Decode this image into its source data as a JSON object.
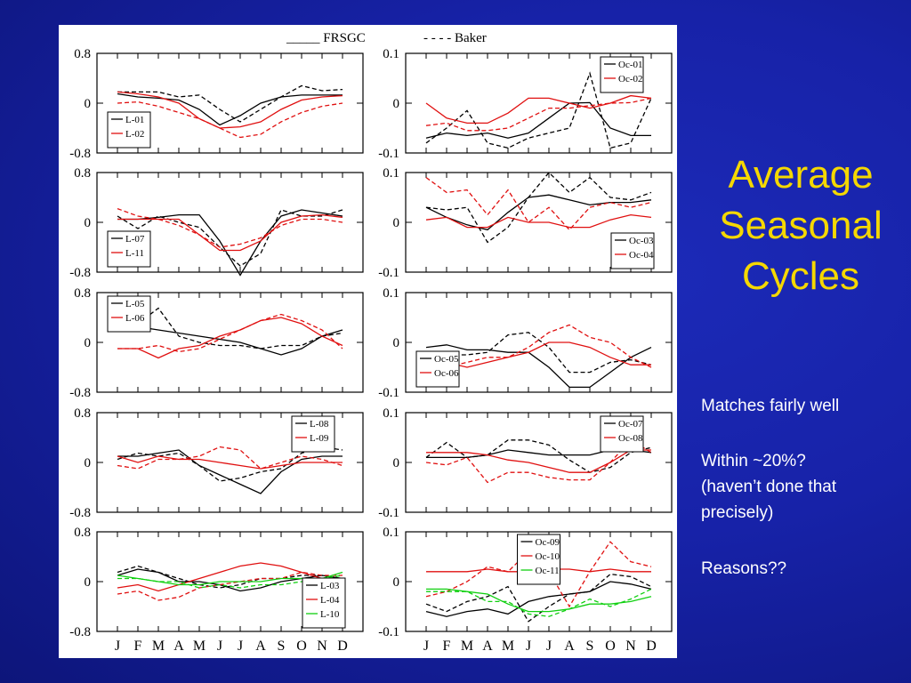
{
  "slide": {
    "title_lines": [
      "Average",
      "Seasonal",
      "Cycles"
    ],
    "notes": [
      [
        "Matches fairly well"
      ],
      [
        "Within ~20%?",
        "(haven’t done that",
        "precisely)"
      ],
      [
        "Reasons??"
      ]
    ]
  },
  "figure_legend": {
    "solid_label": "_____ FRSGC",
    "dashed_label": "- - - - Baker"
  },
  "month_labels": [
    "J",
    "F",
    "M",
    "A",
    "M",
    "J",
    "J",
    "A",
    "S",
    "O",
    "N",
    "D"
  ],
  "chart_data": [
    {
      "type": "line",
      "ylim": [
        -0.8,
        0.8
      ],
      "yticks": [
        "0.8",
        "0",
        "-0.8"
      ],
      "legend": "bottom-left",
      "series": [
        {
          "name": "L-01",
          "color": "#000000",
          "style": "solid",
          "values": [
            0.15,
            0.1,
            0.08,
            0.05,
            -0.1,
            -0.35,
            -0.2,
            0,
            0.1,
            0.13,
            0.13,
            0.13
          ]
        },
        {
          "name": "L-01",
          "color": "#000000",
          "style": "dashed",
          "values": [
            0.18,
            0.18,
            0.18,
            0.1,
            0.13,
            -0.1,
            -0.3,
            -0.1,
            0.1,
            0.28,
            0.2,
            0.22
          ]
        },
        {
          "name": "L-02",
          "color": "#e01010",
          "style": "solid",
          "values": [
            0.18,
            0.15,
            0.1,
            0,
            -0.25,
            -0.4,
            -0.38,
            -0.3,
            -0.1,
            0.05,
            0.1,
            0.12
          ]
        },
        {
          "name": "L-02",
          "color": "#e01010",
          "style": "dashed",
          "values": [
            0,
            0.02,
            -0.05,
            -0.15,
            -0.25,
            -0.4,
            -0.55,
            -0.5,
            -0.3,
            -0.15,
            -0.05,
            0
          ]
        }
      ]
    },
    {
      "type": "line",
      "ylim": [
        -0.1,
        0.1
      ],
      "yticks": [
        "0.1",
        "0",
        "-0.1"
      ],
      "legend": "top-right",
      "series": [
        {
          "name": "Oc-01",
          "color": "#000000",
          "style": "solid",
          "values": [
            -0.07,
            -0.06,
            -0.065,
            -0.06,
            -0.07,
            -0.06,
            -0.03,
            0,
            0.001,
            -0.05,
            -0.065,
            -0.065
          ]
        },
        {
          "name": "Oc-01",
          "color": "#000000",
          "style": "dashed",
          "values": [
            -0.08,
            -0.05,
            -0.015,
            -0.08,
            -0.09,
            -0.07,
            -0.06,
            -0.05,
            0.06,
            -0.09,
            -0.08,
            0.01
          ]
        },
        {
          "name": "Oc-02",
          "color": "#e01010",
          "style": "solid",
          "values": [
            0,
            -0.03,
            -0.04,
            -0.04,
            -0.02,
            0.01,
            0.01,
            0,
            -0.01,
            0,
            0.015,
            0.01
          ]
        },
        {
          "name": "Oc-02",
          "color": "#e01010",
          "style": "dashed",
          "values": [
            -0.045,
            -0.04,
            -0.055,
            -0.055,
            -0.05,
            -0.03,
            -0.01,
            -0.01,
            -0.005,
            0,
            0.001,
            0.01
          ]
        }
      ]
    },
    {
      "type": "line",
      "ylim": [
        -0.8,
        0.8
      ],
      "yticks": [
        "0.8",
        "0",
        "-0.8"
      ],
      "legend": "bottom-left",
      "series": [
        {
          "name": "L-07",
          "color": "#000000",
          "style": "solid",
          "values": [
            0.05,
            0.05,
            0.08,
            0.12,
            0.12,
            -0.3,
            -0.85,
            -0.3,
            0.1,
            0.2,
            0.15,
            0.1
          ]
        },
        {
          "name": "L-07",
          "color": "#000000",
          "style": "dashed",
          "values": [
            0.1,
            -0.1,
            0.1,
            0,
            -0.08,
            -0.4,
            -0.7,
            -0.5,
            0.2,
            0.1,
            0.1,
            0.2
          ]
        },
        {
          "name": "L-11",
          "color": "#e01010",
          "style": "solid",
          "values": [
            0.05,
            0.05,
            0.05,
            0.05,
            -0.2,
            -0.45,
            -0.45,
            -0.3,
            0,
            0.1,
            0.12,
            0.08
          ]
        },
        {
          "name": "L-11",
          "color": "#e01010",
          "style": "dashed",
          "values": [
            0.22,
            0.1,
            0.05,
            -0.05,
            -0.2,
            -0.4,
            -0.35,
            -0.25,
            -0.05,
            0.05,
            0.05,
            0
          ]
        }
      ]
    },
    {
      "type": "line",
      "ylim": [
        -0.1,
        0.1
      ],
      "yticks": [
        "0.1",
        "0",
        "-0.1"
      ],
      "legend": "bottom-right",
      "series": [
        {
          "name": "Oc-03",
          "color": "#000000",
          "style": "solid",
          "values": [
            0.03,
            0.01,
            -0.005,
            -0.015,
            0.02,
            0.05,
            0.055,
            0.045,
            0.035,
            0.04,
            0.04,
            0.045
          ]
        },
        {
          "name": "Oc-03",
          "color": "#000000",
          "style": "dashed",
          "values": [
            0.03,
            0.025,
            0.03,
            -0.04,
            -0.01,
            0.05,
            0.1,
            0.06,
            0.09,
            0.05,
            0.045,
            0.06
          ]
        },
        {
          "name": "Oc-04",
          "color": "#e01010",
          "style": "solid",
          "values": [
            0.005,
            0.01,
            -0.01,
            -0.01,
            0.01,
            0,
            0,
            -0.01,
            -0.01,
            0.005,
            0.015,
            0.01
          ]
        },
        {
          "name": "Oc-04",
          "color": "#e01010",
          "style": "dashed",
          "values": [
            0.09,
            0.06,
            0.065,
            0.015,
            0.065,
            0,
            0.03,
            -0.015,
            0.03,
            0.04,
            0.03,
            0.04
          ]
        }
      ]
    },
    {
      "type": "line",
      "ylim": [
        -0.8,
        0.8
      ],
      "yticks": [
        "0.8",
        "0",
        "-0.8"
      ],
      "legend": "top-left",
      "series": [
        {
          "name": "L-05",
          "color": "#000000",
          "style": "solid",
          "values": [
            0.3,
            0.25,
            0.2,
            0.15,
            0.1,
            0.05,
            0,
            -0.1,
            -0.2,
            -0.1,
            0.1,
            0.2
          ]
        },
        {
          "name": "L-05",
          "color": "#000000",
          "style": "dashed",
          "values": [
            0.3,
            0.3,
            0.55,
            0.1,
            0,
            -0.05,
            -0.05,
            -0.1,
            -0.05,
            -0.05,
            0.1,
            0.15
          ]
        },
        {
          "name": "L-06",
          "color": "#e01010",
          "style": "solid",
          "values": [
            -0.1,
            -0.1,
            -0.25,
            -0.1,
            -0.05,
            0.1,
            0.2,
            0.35,
            0.4,
            0.3,
            0.1,
            -0.05
          ]
        },
        {
          "name": "L-06",
          "color": "#e01010",
          "style": "dashed",
          "values": [
            -0.1,
            -0.1,
            -0.05,
            -0.15,
            -0.1,
            0.05,
            0.2,
            0.35,
            0.45,
            0.35,
            0.2,
            -0.1
          ]
        }
      ]
    },
    {
      "type": "line",
      "ylim": [
        -0.1,
        0.1
      ],
      "yticks": [
        "0.1",
        "0",
        "-0.1"
      ],
      "legend": "bottom-left",
      "series": [
        {
          "name": "Oc-05",
          "color": "#000000",
          "style": "solid",
          "values": [
            -0.01,
            -0.005,
            -0.015,
            -0.015,
            -0.02,
            -0.02,
            -0.05,
            -0.09,
            -0.09,
            -0.06,
            -0.03,
            -0.01
          ]
        },
        {
          "name": "Oc-05",
          "color": "#000000",
          "style": "dashed",
          "values": [
            -0.03,
            -0.025,
            -0.025,
            -0.02,
            0.015,
            0.02,
            -0.01,
            -0.06,
            -0.06,
            -0.04,
            -0.035,
            -0.045
          ]
        },
        {
          "name": "Oc-06",
          "color": "#e01010",
          "style": "solid",
          "values": [
            -0.04,
            -0.04,
            -0.05,
            -0.04,
            -0.03,
            -0.02,
            0,
            0,
            -0.01,
            -0.03,
            -0.045,
            -0.045
          ]
        },
        {
          "name": "Oc-06",
          "color": "#e01010",
          "style": "dashed",
          "values": [
            -0.05,
            -0.05,
            -0.04,
            -0.03,
            -0.03,
            -0.01,
            0.02,
            0.035,
            0.01,
            0,
            -0.03,
            -0.05
          ]
        }
      ]
    },
    {
      "type": "line",
      "ylim": [
        -0.8,
        0.8
      ],
      "yticks": [
        "0.8",
        "0",
        "-0.8"
      ],
      "legend": "top-right",
      "series": [
        {
          "name": "L-08",
          "color": "#000000",
          "style": "solid",
          "values": [
            0.1,
            0.1,
            0.15,
            0.2,
            -0.05,
            -0.2,
            -0.35,
            -0.5,
            -0.15,
            0.05,
            0.1,
            0.1
          ]
        },
        {
          "name": "L-08",
          "color": "#000000",
          "style": "dashed",
          "values": [
            0.05,
            0.15,
            0.1,
            0.15,
            -0.05,
            -0.3,
            -0.25,
            -0.15,
            -0.1,
            0.15,
            0.25,
            0.2
          ]
        },
        {
          "name": "L-09",
          "color": "#e01010",
          "style": "solid",
          "values": [
            0.1,
            0,
            0.1,
            0.05,
            0.05,
            0,
            -0.05,
            -0.1,
            -0.05,
            0,
            0,
            0
          ]
        },
        {
          "name": "L-09",
          "color": "#e01010",
          "style": "dashed",
          "values": [
            -0.05,
            -0.1,
            0.05,
            0.05,
            0.1,
            0.25,
            0.2,
            -0.1,
            0,
            0.1,
            0.05,
            -0.05
          ]
        }
      ]
    },
    {
      "type": "line",
      "ylim": [
        -0.1,
        0.1
      ],
      "yticks": [
        "0.1",
        "0",
        "-0.1"
      ],
      "legend": "top-right",
      "series": [
        {
          "name": "Oc-07",
          "color": "#000000",
          "style": "solid",
          "values": [
            0.01,
            0.01,
            0.01,
            0.015,
            0.025,
            0.02,
            0.015,
            0.015,
            0.015,
            0.025,
            0.025,
            0.02
          ]
        },
        {
          "name": "Oc-07",
          "color": "#000000",
          "style": "dashed",
          "values": [
            0.01,
            0.04,
            0.01,
            0.015,
            0.045,
            0.045,
            0.035,
            0.005,
            -0.02,
            -0.01,
            0.02,
            0.03
          ]
        },
        {
          "name": "Oc-08",
          "color": "#e01010",
          "style": "solid",
          "values": [
            0.02,
            0.02,
            0.02,
            0.015,
            0.005,
            0,
            -0.01,
            -0.02,
            -0.02,
            0,
            0.025,
            0.025
          ]
        },
        {
          "name": "Oc-08",
          "color": "#e01010",
          "style": "dashed",
          "values": [
            0,
            -0.005,
            0.01,
            -0.04,
            -0.02,
            -0.02,
            -0.03,
            -0.035,
            -0.035,
            0,
            0.045,
            0.02
          ]
        }
      ]
    },
    {
      "type": "line",
      "ylim": [
        -0.8,
        0.8
      ],
      "yticks": [
        "0.8",
        "0",
        "-0.8"
      ],
      "legend": "bottom-right",
      "series": [
        {
          "name": "L-03",
          "color": "#000000",
          "style": "solid",
          "values": [
            0.1,
            0.2,
            0.15,
            0,
            0,
            -0.05,
            -0.15,
            -0.1,
            0,
            0.05,
            0.1,
            0.05
          ]
        },
        {
          "name": "L-03",
          "color": "#000000",
          "style": "dashed",
          "values": [
            0.15,
            0.25,
            0.15,
            0.05,
            -0.05,
            -0.1,
            -0.05,
            0.05,
            0.05,
            0.1,
            0.1,
            0.05
          ]
        },
        {
          "name": "L-04",
          "color": "#e01010",
          "style": "solid",
          "values": [
            -0.1,
            -0.05,
            -0.15,
            -0.05,
            0.05,
            0.15,
            0.25,
            0.3,
            0.25,
            0.15,
            0.05,
            0
          ]
        },
        {
          "name": "L-04",
          "color": "#e01010",
          "style": "dashed",
          "values": [
            -0.2,
            -0.15,
            -0.3,
            -0.25,
            -0.1,
            -0.05,
            0,
            0.05,
            0.05,
            0.15,
            0.1,
            0.1
          ]
        },
        {
          "name": "L-10",
          "color": "#10d010",
          "style": "solid",
          "values": [
            0.1,
            0.05,
            0,
            -0.05,
            -0.05,
            0,
            0,
            0,
            0.05,
            0.05,
            0.05,
            0.15
          ]
        },
        {
          "name": "L-10",
          "color": "#10d010",
          "style": "dashed",
          "values": [
            0.05,
            0.05,
            0,
            0,
            -0.1,
            -0.05,
            -0.1,
            -0.05,
            -0.05,
            0,
            0.05,
            0.1
          ]
        }
      ]
    },
    {
      "type": "line",
      "ylim": [
        -0.1,
        0.1
      ],
      "yticks": [
        "0.1",
        "0",
        "-0.1"
      ],
      "legend": "top-center",
      "series": [
        {
          "name": "Oc-09",
          "color": "#000000",
          "style": "solid",
          "values": [
            -0.06,
            -0.07,
            -0.06,
            -0.055,
            -0.065,
            -0.04,
            -0.03,
            -0.025,
            -0.02,
            0,
            -0.005,
            -0.015
          ]
        },
        {
          "name": "Oc-09",
          "color": "#000000",
          "style": "dashed",
          "values": [
            -0.045,
            -0.06,
            -0.04,
            -0.03,
            -0.01,
            -0.08,
            -0.05,
            -0.025,
            -0.02,
            0.015,
            0.01,
            -0.01
          ]
        },
        {
          "name": "Oc-10",
          "color": "#e01010",
          "style": "solid",
          "values": [
            0.02,
            0.02,
            0.02,
            0.025,
            0.02,
            0.02,
            0.025,
            0.025,
            0.02,
            0.025,
            0.02,
            0.02
          ]
        },
        {
          "name": "Oc-10",
          "color": "#e01010",
          "style": "dashed",
          "values": [
            -0.03,
            -0.02,
            0,
            0.03,
            0.02,
            0.06,
            0.02,
            -0.05,
            0.02,
            0.08,
            0.04,
            0.03
          ]
        },
        {
          "name": "Oc-11",
          "color": "#10d010",
          "style": "solid",
          "values": [
            -0.015,
            -0.015,
            -0.02,
            -0.025,
            -0.045,
            -0.06,
            -0.06,
            -0.055,
            -0.045,
            -0.045,
            -0.04,
            -0.03
          ]
        },
        {
          "name": "Oc-11",
          "color": "#10d010",
          "style": "dashed",
          "values": [
            -0.02,
            -0.02,
            -0.02,
            -0.04,
            -0.04,
            -0.065,
            -0.07,
            -0.055,
            -0.035,
            -0.05,
            -0.035,
            -0.015
          ]
        }
      ]
    }
  ]
}
